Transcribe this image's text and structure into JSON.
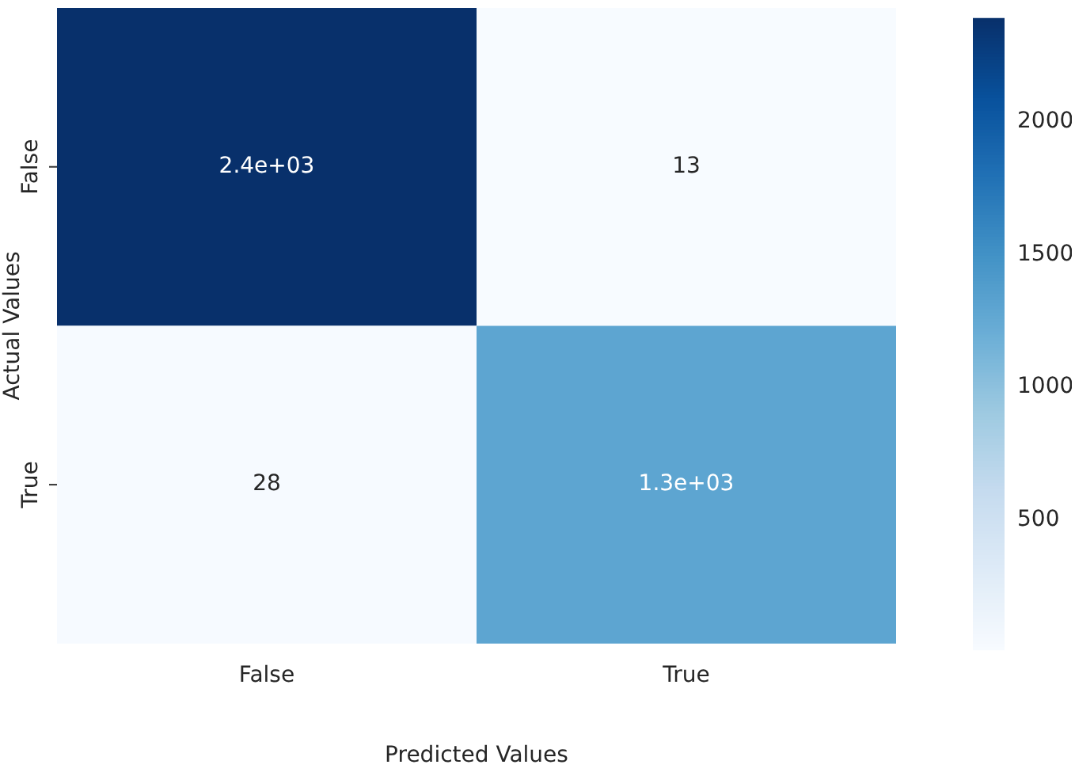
{
  "chart_data": {
    "type": "heatmap",
    "xlabel": "Predicted Values",
    "ylabel": "Actual Values",
    "categories": [
      "False",
      "True"
    ],
    "y_categories": [
      "False",
      "True"
    ],
    "cells": [
      [
        2390,
        13
      ],
      [
        28,
        1300
      ]
    ],
    "cell_labels": [
      [
        "2.4e+03",
        "13"
      ],
      [
        "28",
        "1.3e+03"
      ]
    ],
    "clim": [
      13,
      2390
    ],
    "cticks": [
      500,
      1000,
      1500,
      2000
    ]
  }
}
